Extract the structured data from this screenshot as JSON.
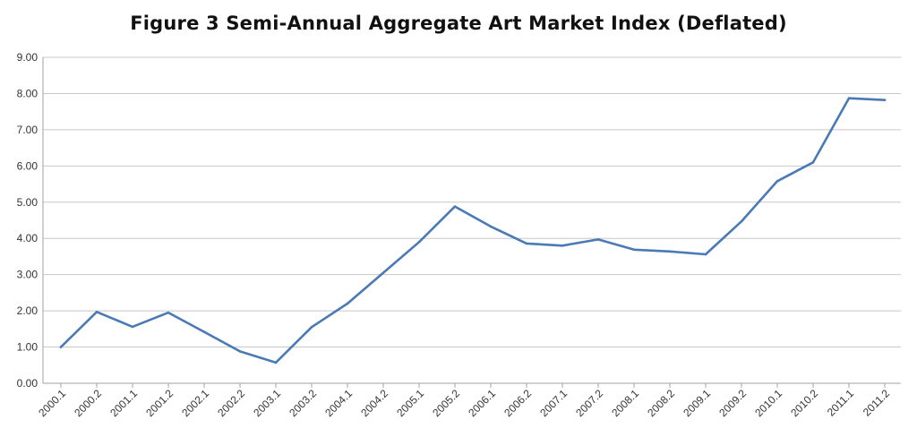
{
  "chart_data": {
    "type": "line",
    "title": "Figure 3 Semi-Annual Aggregate Art Market Index (Deflated)",
    "xlabel": "",
    "ylabel": "",
    "ylim": [
      0,
      9
    ],
    "y_ticks": [
      "0.00",
      "1.00",
      "2.00",
      "3.00",
      "4.00",
      "5.00",
      "6.00",
      "7.00",
      "8.00",
      "9.00"
    ],
    "y_tick_values": [
      0,
      1,
      2,
      3,
      4,
      5,
      6,
      7,
      8,
      9
    ],
    "grid": true,
    "categories": [
      "2000.1",
      "2000.2",
      "2001.1",
      "2001.2",
      "2002.1",
      "2002.2",
      "2003.1",
      "2003.2",
      "2004.1",
      "2004.2",
      "2005.1",
      "2005.2",
      "2006.1",
      "2006.2",
      "2007.1",
      "2007.2",
      "2008.1",
      "2008.2",
      "2009.1",
      "2009.2",
      "2010.1",
      "2010.2",
      "2011.1",
      "2011.2"
    ],
    "series": [
      {
        "values": [
          1.0,
          1.97,
          1.56,
          1.95,
          1.42,
          0.88,
          0.57,
          1.55,
          2.2,
          3.05,
          3.9,
          4.88,
          4.33,
          3.86,
          3.8,
          3.97,
          3.69,
          3.64,
          3.56,
          4.47,
          5.58,
          6.1,
          7.87,
          7.82
        ],
        "color": "#4a7ab5"
      }
    ]
  }
}
